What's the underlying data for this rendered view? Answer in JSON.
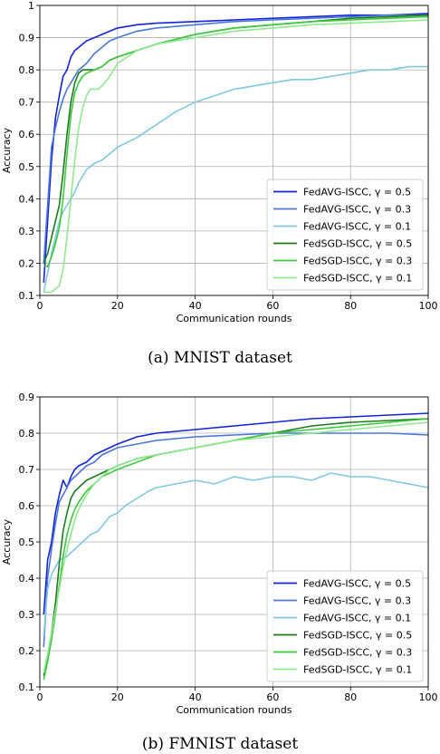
{
  "figure": {
    "panels": [
      {
        "caption": "(a)  MNIST dataset"
      },
      {
        "caption": "(b)  FMNIST dataset"
      }
    ]
  },
  "chart_data": [
    {
      "type": "line",
      "xlabel": "Communication rounds",
      "ylabel": "Accuracy",
      "xlim": [
        0,
        100
      ],
      "ylim": [
        0.1,
        1.0
      ],
      "xticks": [
        0,
        20,
        40,
        60,
        80,
        100
      ],
      "yticks": [
        0.1,
        0.2,
        0.3,
        0.4,
        0.5,
        0.6,
        0.7,
        0.8,
        0.9,
        1.0
      ],
      "grid": true,
      "legend_position": "bottom-right",
      "caption": "(a)  MNIST dataset",
      "series": [
        {
          "name": "FedAVG-ISCC, γ = 0.5",
          "color": "#1424d6",
          "x": [
            1,
            2,
            3,
            4,
            5,
            6,
            7,
            8,
            9,
            10,
            12,
            14,
            16,
            18,
            20,
            25,
            30,
            40,
            50,
            60,
            70,
            80,
            90,
            100
          ],
          "y": [
            0.14,
            0.33,
            0.52,
            0.65,
            0.72,
            0.78,
            0.8,
            0.84,
            0.86,
            0.87,
            0.89,
            0.9,
            0.91,
            0.92,
            0.93,
            0.94,
            0.945,
            0.95,
            0.955,
            0.96,
            0.965,
            0.97,
            0.97,
            0.975
          ]
        },
        {
          "name": "FedAVG-ISCC, γ = 0.3",
          "color": "#4a78d8",
          "x": [
            1,
            2,
            3,
            4,
            5,
            6,
            7,
            8,
            9,
            10,
            12,
            14,
            16,
            18,
            20,
            25,
            30,
            40,
            50,
            60,
            70,
            80,
            90,
            100
          ],
          "y": [
            0.2,
            0.38,
            0.56,
            0.62,
            0.67,
            0.71,
            0.74,
            0.76,
            0.78,
            0.8,
            0.82,
            0.85,
            0.87,
            0.89,
            0.9,
            0.92,
            0.93,
            0.94,
            0.95,
            0.955,
            0.96,
            0.965,
            0.97,
            0.97
          ]
        },
        {
          "name": "FedAVG-ISCC, γ = 0.1",
          "color": "#80c8e4",
          "x": [
            1,
            2,
            3,
            4,
            5,
            6,
            7,
            8,
            9,
            10,
            12,
            14,
            16,
            18,
            20,
            25,
            30,
            35,
            40,
            45,
            50,
            55,
            60,
            65,
            70,
            75,
            80,
            85,
            90,
            95,
            100
          ],
          "y": [
            0.11,
            0.17,
            0.23,
            0.28,
            0.33,
            0.36,
            0.38,
            0.4,
            0.42,
            0.45,
            0.49,
            0.51,
            0.52,
            0.54,
            0.56,
            0.59,
            0.63,
            0.67,
            0.7,
            0.72,
            0.74,
            0.75,
            0.76,
            0.77,
            0.77,
            0.78,
            0.79,
            0.8,
            0.8,
            0.81,
            0.81
          ]
        },
        {
          "name": "FedSGD-ISCC, γ = 0.5",
          "color": "#1e7c1e",
          "x": [
            1,
            2,
            3,
            4,
            5,
            6,
            7,
            8,
            9,
            10,
            11,
            12,
            14,
            16,
            18,
            20,
            25,
            30,
            40,
            50,
            60,
            70,
            80,
            90,
            100
          ],
          "y": [
            0.2,
            0.23,
            0.28,
            0.33,
            0.38,
            0.48,
            0.6,
            0.7,
            0.76,
            0.79,
            0.8,
            0.8,
            0.8,
            0.81,
            0.83,
            0.84,
            0.86,
            0.88,
            0.91,
            0.93,
            0.94,
            0.95,
            0.96,
            0.965,
            0.97
          ]
        },
        {
          "name": "FedSGD-ISCC, γ = 0.3",
          "color": "#3ec83e",
          "x": [
            1,
            2,
            3,
            4,
            5,
            6,
            7,
            8,
            9,
            10,
            11,
            12,
            14,
            16,
            18,
            20,
            25,
            30,
            40,
            50,
            60,
            70,
            80,
            90,
            100
          ],
          "y": [
            0.19,
            0.19,
            0.22,
            0.26,
            0.31,
            0.4,
            0.54,
            0.66,
            0.73,
            0.76,
            0.78,
            0.79,
            0.8,
            0.81,
            0.83,
            0.84,
            0.86,
            0.88,
            0.91,
            0.93,
            0.94,
            0.95,
            0.955,
            0.96,
            0.965
          ]
        },
        {
          "name": "FedSGD-ISCC, γ = 0.1",
          "color": "#90e890",
          "x": [
            1,
            2,
            3,
            4,
            5,
            6,
            7,
            8,
            9,
            10,
            11,
            12,
            13,
            14,
            15,
            16,
            18,
            20,
            25,
            30,
            40,
            50,
            60,
            70,
            80,
            90,
            100
          ],
          "y": [
            0.11,
            0.11,
            0.11,
            0.12,
            0.13,
            0.18,
            0.28,
            0.4,
            0.52,
            0.62,
            0.68,
            0.72,
            0.74,
            0.74,
            0.74,
            0.75,
            0.78,
            0.82,
            0.86,
            0.88,
            0.9,
            0.92,
            0.93,
            0.94,
            0.945,
            0.95,
            0.955
          ]
        }
      ]
    },
    {
      "type": "line",
      "xlabel": "Communication rounds",
      "ylabel": "Accuracy",
      "xlim": [
        0,
        100
      ],
      "ylim": [
        0.1,
        0.9
      ],
      "xticks": [
        0,
        20,
        40,
        60,
        80,
        100
      ],
      "yticks": [
        0.1,
        0.2,
        0.3,
        0.4,
        0.5,
        0.6,
        0.7,
        0.8,
        0.9
      ],
      "grid": true,
      "legend_position": "bottom-right",
      "caption": "(b)  FMNIST dataset",
      "series": [
        {
          "name": "FedAVG-ISCC, γ = 0.5",
          "color": "#1424d6",
          "x": [
            1,
            2,
            3,
            4,
            5,
            6,
            7,
            8,
            9,
            10,
            12,
            14,
            16,
            18,
            20,
            25,
            30,
            40,
            50,
            60,
            70,
            80,
            90,
            100
          ],
          "y": [
            0.3,
            0.45,
            0.5,
            0.58,
            0.63,
            0.67,
            0.65,
            0.68,
            0.7,
            0.71,
            0.72,
            0.74,
            0.75,
            0.76,
            0.77,
            0.79,
            0.8,
            0.81,
            0.82,
            0.83,
            0.84,
            0.845,
            0.85,
            0.855
          ]
        },
        {
          "name": "FedAVG-ISCC, γ = 0.3",
          "color": "#4a78d8",
          "x": [
            1,
            2,
            3,
            4,
            5,
            6,
            7,
            8,
            9,
            10,
            12,
            14,
            16,
            18,
            20,
            25,
            30,
            40,
            50,
            60,
            70,
            80,
            90,
            100
          ],
          "y": [
            0.21,
            0.4,
            0.48,
            0.55,
            0.61,
            0.63,
            0.65,
            0.67,
            0.68,
            0.69,
            0.71,
            0.72,
            0.74,
            0.75,
            0.76,
            0.77,
            0.78,
            0.79,
            0.795,
            0.8,
            0.8,
            0.8,
            0.8,
            0.795
          ]
        },
        {
          "name": "FedAVG-ISCC, γ = 0.1",
          "color": "#80c8e4",
          "x": [
            1,
            2,
            3,
            4,
            5,
            7,
            9,
            11,
            13,
            15,
            18,
            20,
            22,
            25,
            28,
            30,
            35,
            40,
            45,
            50,
            55,
            60,
            65,
            70,
            75,
            80,
            85,
            90,
            95,
            100
          ],
          "y": [
            0.24,
            0.37,
            0.41,
            0.43,
            0.45,
            0.46,
            0.48,
            0.5,
            0.52,
            0.53,
            0.57,
            0.58,
            0.6,
            0.62,
            0.64,
            0.65,
            0.66,
            0.67,
            0.66,
            0.68,
            0.67,
            0.68,
            0.68,
            0.67,
            0.69,
            0.68,
            0.68,
            0.67,
            0.66,
            0.65
          ]
        },
        {
          "name": "FedSGD-ISCC, γ = 0.5",
          "color": "#1e7c1e",
          "x": [
            1,
            2,
            3,
            4,
            5,
            6,
            7,
            8,
            9,
            10,
            12,
            14,
            16,
            18,
            20,
            25,
            30,
            40,
            50,
            60,
            70,
            80,
            90,
            100
          ],
          "y": [
            0.13,
            0.18,
            0.25,
            0.33,
            0.44,
            0.53,
            0.58,
            0.62,
            0.64,
            0.65,
            0.67,
            0.68,
            0.69,
            0.7,
            0.71,
            0.73,
            0.74,
            0.76,
            0.78,
            0.8,
            0.82,
            0.83,
            0.835,
            0.84
          ]
        },
        {
          "name": "FedSGD-ISCC, γ = 0.3",
          "color": "#3ec83e",
          "x": [
            1,
            2,
            3,
            4,
            5,
            6,
            7,
            8,
            9,
            10,
            12,
            14,
            16,
            18,
            20,
            25,
            30,
            40,
            50,
            60,
            70,
            80,
            90,
            100
          ],
          "y": [
            0.12,
            0.17,
            0.23,
            0.3,
            0.38,
            0.46,
            0.52,
            0.56,
            0.59,
            0.61,
            0.64,
            0.66,
            0.68,
            0.69,
            0.7,
            0.72,
            0.74,
            0.76,
            0.78,
            0.8,
            0.81,
            0.82,
            0.83,
            0.84
          ]
        },
        {
          "name": "FedSGD-ISCC, γ = 0.1",
          "color": "#90e890",
          "x": [
            1,
            2,
            3,
            4,
            5,
            6,
            7,
            8,
            9,
            10,
            12,
            14,
            16,
            18,
            20,
            25,
            30,
            40,
            50,
            60,
            70,
            80,
            90,
            100
          ],
          "y": [
            0.14,
            0.19,
            0.25,
            0.31,
            0.37,
            0.43,
            0.48,
            0.52,
            0.56,
            0.59,
            0.63,
            0.66,
            0.68,
            0.7,
            0.71,
            0.73,
            0.74,
            0.76,
            0.78,
            0.79,
            0.8,
            0.81,
            0.82,
            0.83
          ]
        }
      ]
    }
  ]
}
